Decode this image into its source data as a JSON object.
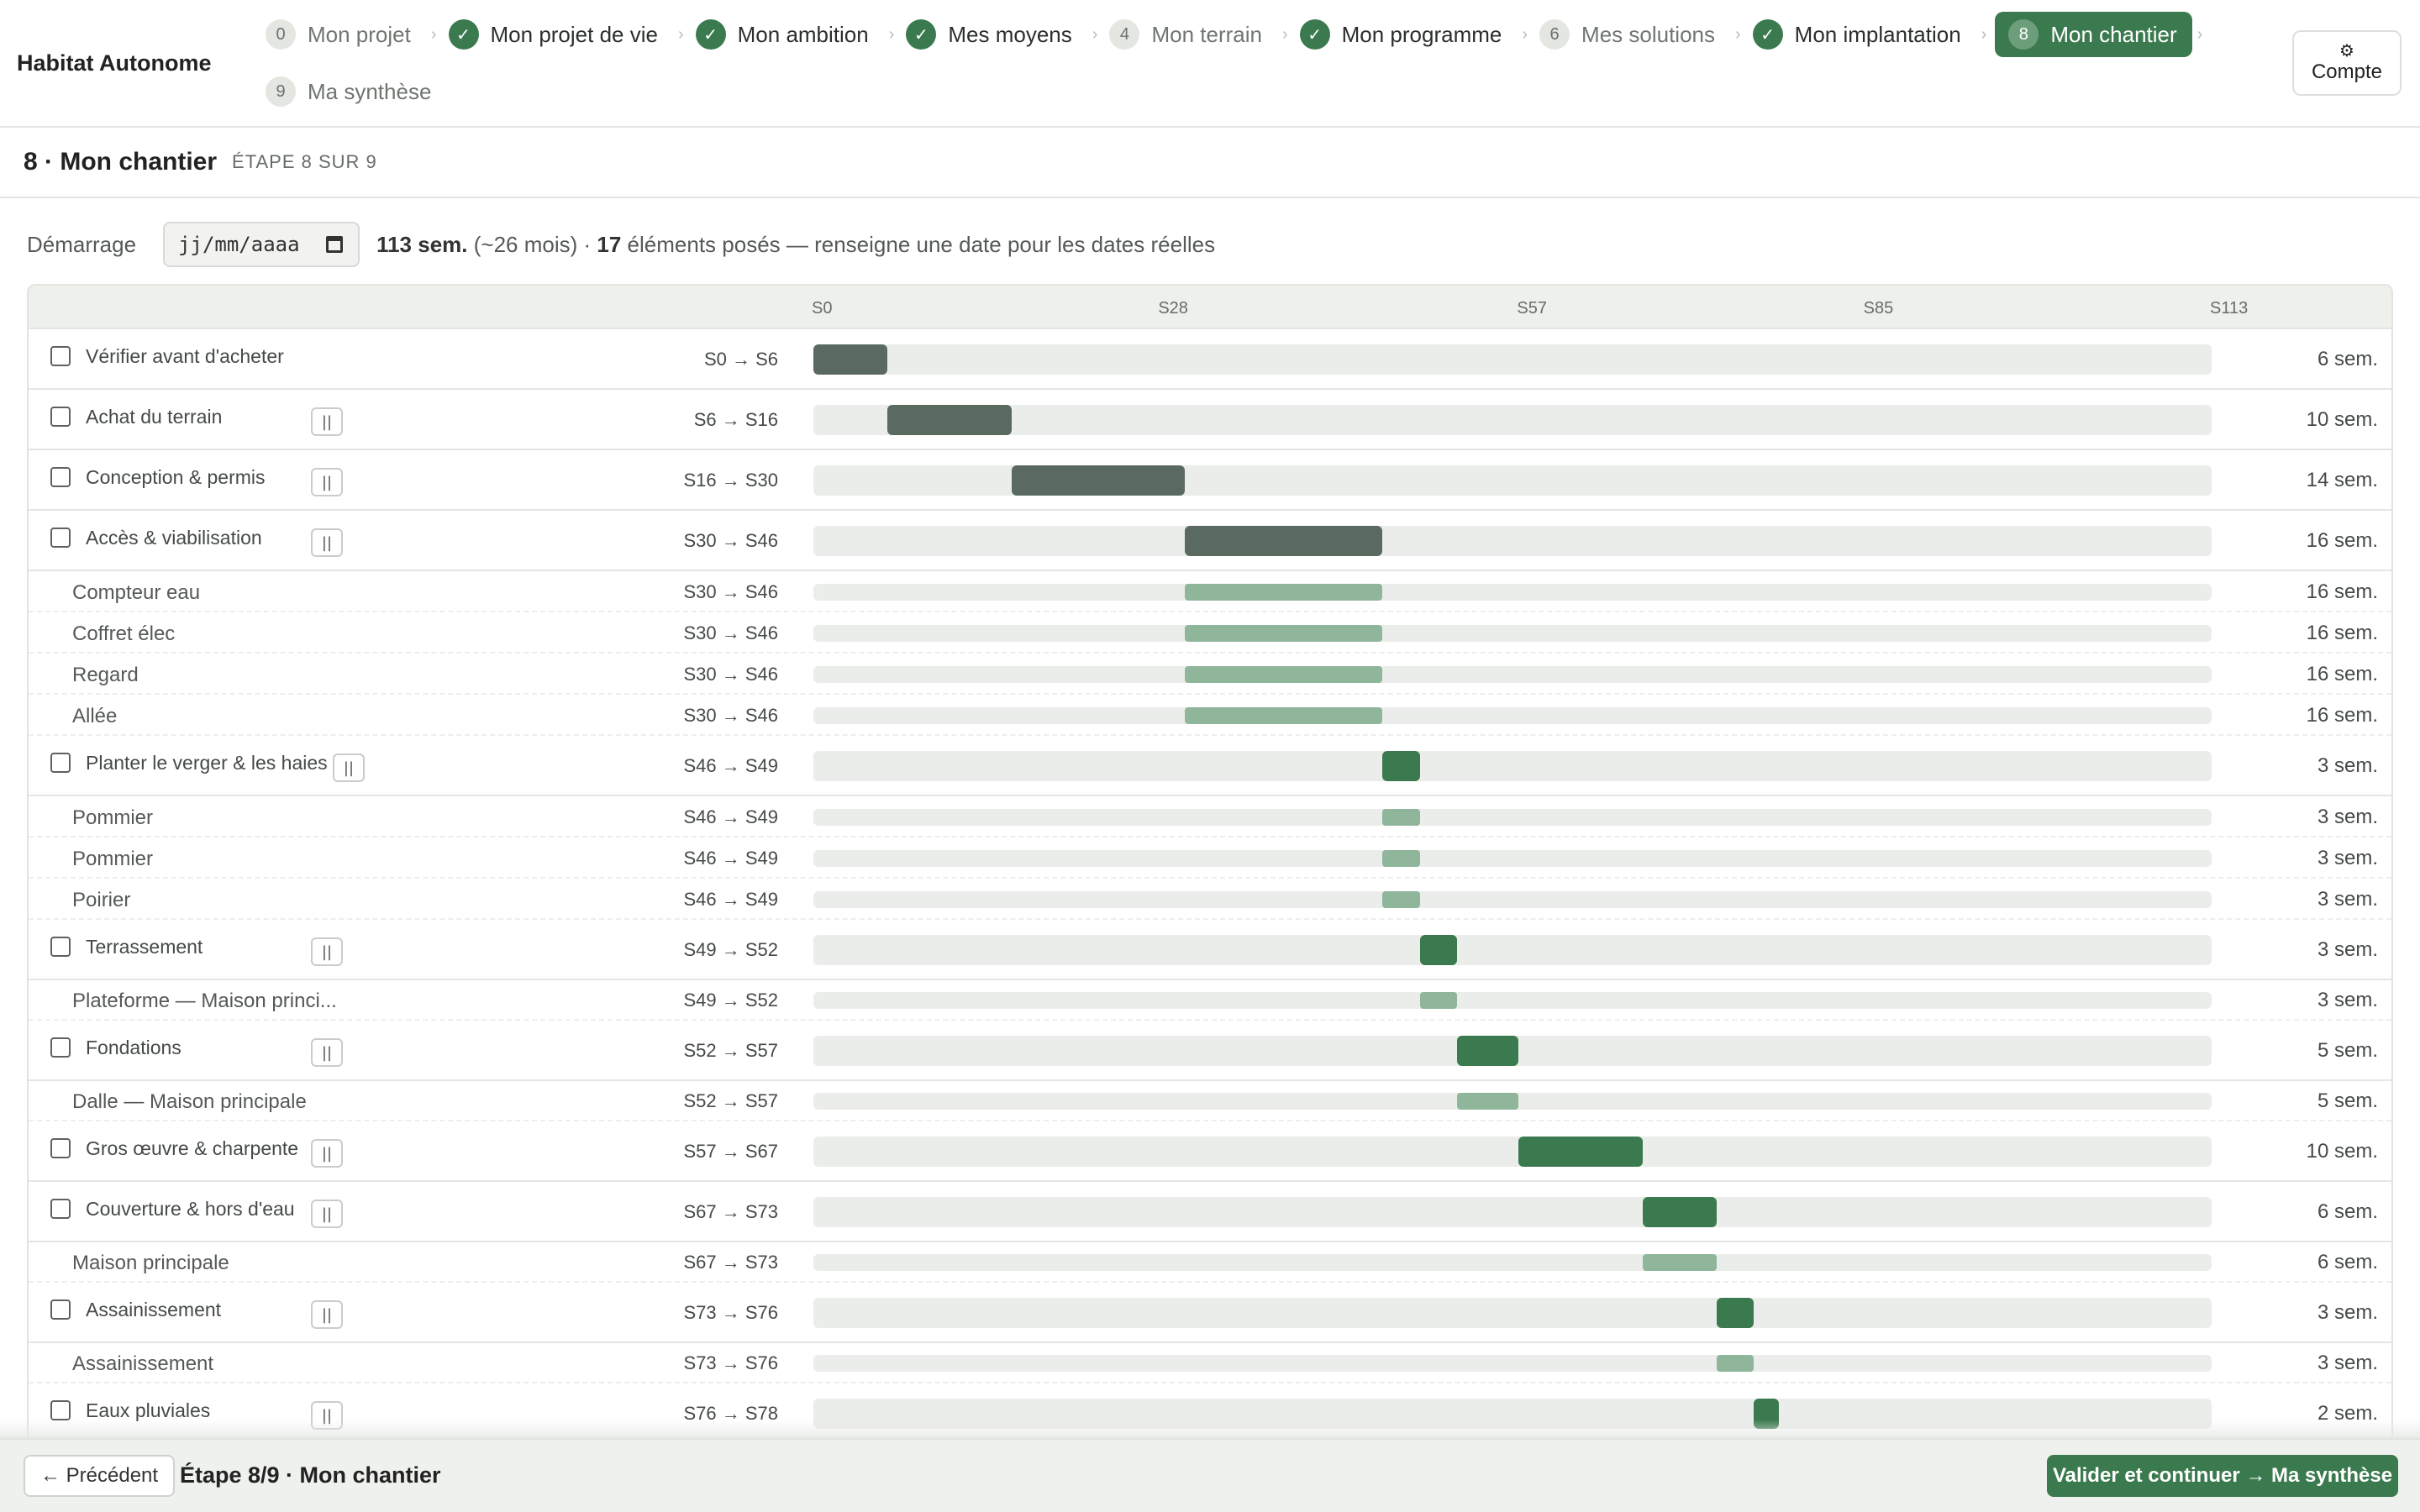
{
  "app": {
    "title": "Habitat Autonome",
    "account_icon": "gear-icon",
    "account_label": "Compte"
  },
  "colors": {
    "accent": "#3b7a4f",
    "bar_done": "#5b6a60",
    "bar_sub": "#8fb59a",
    "track": "#ebedea"
  },
  "steps": [
    {
      "num": "0",
      "label": "Mon projet",
      "state": "pending"
    },
    {
      "num": "1",
      "label": "Mon projet de vie",
      "state": "done"
    },
    {
      "num": "2",
      "label": "Mon ambition",
      "state": "done"
    },
    {
      "num": "3",
      "label": "Mes moyens",
      "state": "done"
    },
    {
      "num": "4",
      "label": "Mon terrain",
      "state": "pending"
    },
    {
      "num": "5",
      "label": "Mon programme",
      "state": "done"
    },
    {
      "num": "6",
      "label": "Mes solutions",
      "state": "pending"
    },
    {
      "num": "7",
      "label": "Mon implantation",
      "state": "done"
    },
    {
      "num": "8",
      "label": "Mon chantier",
      "state": "active"
    },
    {
      "num": "9",
      "label": "Ma synthèse",
      "state": "pending"
    }
  ],
  "section": {
    "title": "8 · Mon chantier",
    "subtitle": "ÉTAPE 8 SUR 9"
  },
  "start": {
    "label": "Démarrage",
    "date_placeholder": "jj/mm/aaaa",
    "weeks": "113 sem.",
    "months": "(~26 mois) ·",
    "count": "17",
    "count_text": "éléments posés — renseigne une date pour les dates réelles"
  },
  "gantt": {
    "total_weeks": 113,
    "ticks": [
      "S0",
      "S28",
      "S57",
      "S85",
      "S113"
    ],
    "rows": [
      {
        "kind": "main",
        "name": "Vérifier avant d'acheter",
        "range": "S0 → S6",
        "start": 0,
        "end": 6,
        "duration": "6 sem.",
        "status": "done",
        "pause": false
      },
      {
        "kind": "main",
        "name": "Achat du terrain",
        "range": "S6 → S16",
        "start": 6,
        "end": 16,
        "duration": "10 sem.",
        "status": "done",
        "pause": true
      },
      {
        "kind": "main",
        "name": "Conception & permis",
        "range": "S16 → S30",
        "start": 16,
        "end": 30,
        "duration": "14 sem.",
        "status": "done",
        "pause": true
      },
      {
        "kind": "main",
        "name": "Accès & viabilisation",
        "range": "S30 → S46",
        "start": 30,
        "end": 46,
        "duration": "16 sem.",
        "status": "done",
        "pause": true
      },
      {
        "kind": "sub",
        "name": "Compteur eau",
        "range": "S30 → S46",
        "start": 30,
        "end": 46,
        "duration": "16 sem."
      },
      {
        "kind": "sub",
        "name": "Coffret élec",
        "range": "S30 → S46",
        "start": 30,
        "end": 46,
        "duration": "16 sem."
      },
      {
        "kind": "sub",
        "name": "Regard",
        "range": "S30 → S46",
        "start": 30,
        "end": 46,
        "duration": "16 sem."
      },
      {
        "kind": "sub",
        "name": "Allée",
        "range": "S30 → S46",
        "start": 30,
        "end": 46,
        "duration": "16 sem."
      },
      {
        "kind": "main",
        "name": "Planter le verger & les haies",
        "range": "S46 → S49",
        "start": 46,
        "end": 49,
        "duration": "3 sem.",
        "status": "todo",
        "pause": true
      },
      {
        "kind": "sub",
        "name": "Pommier",
        "range": "S46 → S49",
        "start": 46,
        "end": 49,
        "duration": "3 sem."
      },
      {
        "kind": "sub",
        "name": "Pommier",
        "range": "S46 → S49",
        "start": 46,
        "end": 49,
        "duration": "3 sem."
      },
      {
        "kind": "sub",
        "name": "Poirier",
        "range": "S46 → S49",
        "start": 46,
        "end": 49,
        "duration": "3 sem."
      },
      {
        "kind": "main",
        "name": "Terrassement",
        "range": "S49 → S52",
        "start": 49,
        "end": 52,
        "duration": "3 sem.",
        "status": "todo",
        "pause": true
      },
      {
        "kind": "sub",
        "name": "Plateforme — Maison princi...",
        "range": "S49 → S52",
        "start": 49,
        "end": 52,
        "duration": "3 sem."
      },
      {
        "kind": "main",
        "name": "Fondations",
        "range": "S52 → S57",
        "start": 52,
        "end": 57,
        "duration": "5 sem.",
        "status": "todo",
        "pause": true
      },
      {
        "kind": "sub",
        "name": "Dalle — Maison principale",
        "range": "S52 → S57",
        "start": 52,
        "end": 57,
        "duration": "5 sem."
      },
      {
        "kind": "main",
        "name": "Gros œuvre & charpente",
        "range": "S57 → S67",
        "start": 57,
        "end": 67,
        "duration": "10 sem.",
        "status": "todo",
        "pause": true
      },
      {
        "kind": "main",
        "name": "Couverture & hors d'eau",
        "range": "S67 → S73",
        "start": 67,
        "end": 73,
        "duration": "6 sem.",
        "status": "todo",
        "pause": true
      },
      {
        "kind": "sub",
        "name": "Maison principale",
        "range": "S67 → S73",
        "start": 67,
        "end": 73,
        "duration": "6 sem."
      },
      {
        "kind": "main",
        "name": "Assainissement",
        "range": "S73 → S76",
        "start": 73,
        "end": 76,
        "duration": "3 sem.",
        "status": "todo",
        "pause": true
      },
      {
        "kind": "sub",
        "name": "Assainissement",
        "range": "S73 → S76",
        "start": 73,
        "end": 76,
        "duration": "3 sem."
      },
      {
        "kind": "main",
        "name": "Eaux pluviales",
        "range": "S76 → S78",
        "start": 76,
        "end": 78,
        "duration": "2 sem.",
        "status": "todo",
        "pause": true
      }
    ]
  },
  "footer": {
    "prev_label": "← Précédent",
    "step_label": "Étape 8/9 · Mon chantier",
    "next_label": "Valider et continuer → Ma synthèse"
  }
}
